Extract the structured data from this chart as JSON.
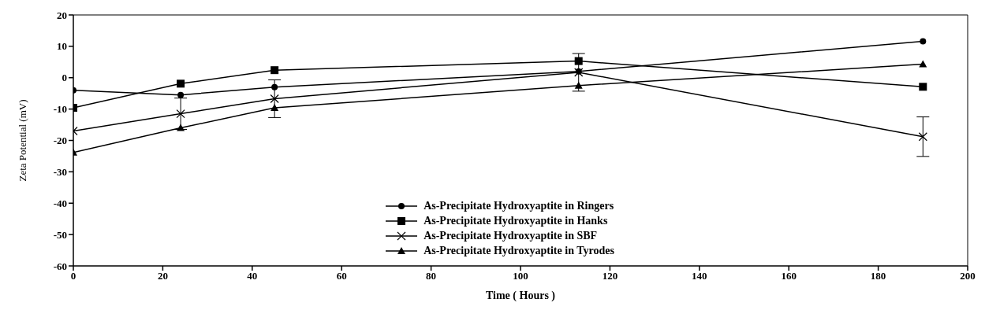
{
  "chart_data": {
    "type": "line",
    "xlabel": "Time ( Hours )",
    "ylabel": "Zeta Potential (mV)",
    "x": [
      0,
      24,
      45,
      113,
      190
    ],
    "xlim": [
      0,
      200
    ],
    "xticks": [
      0,
      20,
      40,
      60,
      80,
      100,
      120,
      140,
      160,
      180,
      200
    ],
    "ylim": [
      -60,
      20
    ],
    "yticks": [
      -60,
      -50,
      -40,
      -30,
      -20,
      -10,
      0,
      10,
      20
    ],
    "grid": false,
    "legend": "bottom",
    "line_style": "solid",
    "series": [
      {
        "name": "As-Precipitate Hydroxyaptite in Ringers",
        "color": "#000000",
        "marker": "circle",
        "values": [
          -4,
          -5.5,
          -3,
          2,
          11.6
        ]
      },
      {
        "name": "As-Precipitate Hydroxyaptite in Hanks",
        "color": "#000000",
        "marker": "square",
        "values": [
          -9.6,
          -1.9,
          2.4,
          5.3,
          -2.9
        ]
      },
      {
        "name": "As-Precipitate Hydroxyaptite in SBF",
        "color": "#000000",
        "marker": "cross",
        "values": [
          -17,
          -11.5,
          -6.7,
          1.7,
          -18.8
        ],
        "errors": [
          null,
          5,
          6,
          6,
          6.3
        ]
      },
      {
        "name": "As-Precipitate Hydroxyaptite in Tyrodes",
        "color": "#000000",
        "marker": "triangle",
        "values": [
          -23.8,
          -16,
          -9.6,
          -2.5,
          4.3
        ]
      }
    ]
  }
}
